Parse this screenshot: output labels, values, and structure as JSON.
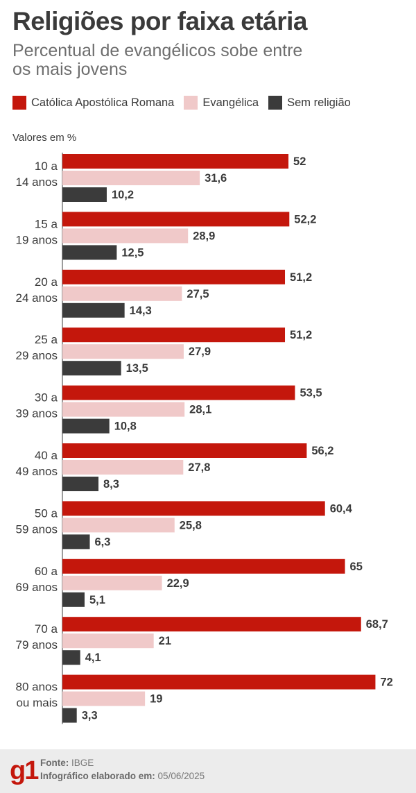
{
  "title": "Religiões por faixa etária",
  "subtitle": "Percentual de evangélicos sobe entre os mais jovens",
  "units_label": "Valores em %",
  "footer": {
    "logo": "g1",
    "source_label": "Fonte:",
    "source_value": "IBGE",
    "date_label": "Infográfico elaborado em:",
    "date_value": "05/06/2025"
  },
  "colors": {
    "catolica": "#c4170c",
    "evangelica": "#f0c9c9",
    "sem_religiao": "#3b3b3b"
  },
  "chart_data": {
    "type": "bar",
    "orientation": "horizontal",
    "categories": [
      [
        "10 a",
        "14 anos"
      ],
      [
        "15 a",
        "19 anos"
      ],
      [
        "20 a",
        "24 anos"
      ],
      [
        "25 a",
        "29 anos"
      ],
      [
        "30 a",
        "39 anos"
      ],
      [
        "40 a",
        "49 anos"
      ],
      [
        "50 a",
        "59 anos"
      ],
      [
        "60 a",
        "69 anos"
      ],
      [
        "70 a",
        "79 anos"
      ],
      [
        "80 anos",
        "ou mais"
      ]
    ],
    "series": [
      {
        "name": "Católica Apostólica Romana",
        "color": "#c4170c",
        "values": [
          52,
          52.2,
          51.2,
          51.2,
          53.5,
          56.2,
          60.4,
          65,
          68.7,
          72
        ],
        "labels": [
          "52",
          "52,2",
          "51,2",
          "51,2",
          "53,5",
          "56,2",
          "60,4",
          "65",
          "68,7",
          "72"
        ]
      },
      {
        "name": "Evangélica",
        "color": "#f0c9c9",
        "values": [
          31.6,
          28.9,
          27.5,
          27.9,
          28.1,
          27.8,
          25.8,
          22.9,
          21,
          19
        ],
        "labels": [
          "31,6",
          "28,9",
          "27,5",
          "27,9",
          "28,1",
          "27,8",
          "25,8",
          "22,9",
          "21",
          "19"
        ]
      },
      {
        "name": "Sem religião",
        "color": "#3b3b3b",
        "values": [
          10.2,
          12.5,
          14.3,
          13.5,
          10.8,
          8.3,
          6.3,
          5.1,
          4.1,
          3.3
        ],
        "labels": [
          "10,2",
          "12,5",
          "14,3",
          "13,5",
          "10,8",
          "8,3",
          "6,3",
          "5,1",
          "4,1",
          "3,3"
        ]
      }
    ],
    "xlim": [
      0,
      72
    ],
    "grid": false,
    "legend_position": "top-left"
  }
}
